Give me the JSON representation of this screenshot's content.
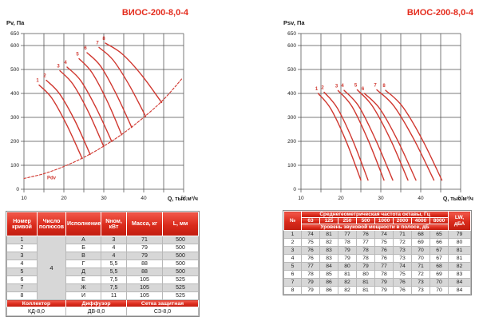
{
  "colors": {
    "accent_red": "#e42b1c",
    "curve_red": "#d03830",
    "grid_gray": "#4f4f4f",
    "row_gray": "#d7d7d7",
    "tick_text": "#1a1a1a"
  },
  "chart_data": [
    {
      "type": "line",
      "title": "ВИОС-200-8,0-4",
      "ylabel": "Pv, Па",
      "xlabel": "Q, тыс.м³/ч",
      "xlim": [
        10,
        50
      ],
      "ylim": [
        0,
        650
      ],
      "xticks": [
        10,
        20,
        30,
        40,
        50
      ],
      "yticks": [
        0,
        100,
        200,
        300,
        400,
        500,
        600,
        650
      ],
      "xgrid": [
        10,
        15,
        20,
        25,
        30,
        35,
        40,
        45,
        50
      ],
      "ygrid": [
        0,
        100,
        200,
        300,
        400,
        500,
        600,
        650
      ],
      "grid": "on",
      "legend": "none",
      "series": [
        {
          "name": "1",
          "points": [
            [
              13.8,
              435
            ],
            [
              17.0,
              380
            ],
            [
              20.8,
              266
            ],
            [
              24.6,
              128
            ]
          ]
        },
        {
          "name": "2",
          "points": [
            [
              15.6,
              455
            ],
            [
              18.9,
              399
            ],
            [
              22.8,
              285
            ],
            [
              26.6,
              145
            ]
          ]
        },
        {
          "name": "3",
          "points": [
            [
              19.0,
              495
            ],
            [
              22.3,
              438
            ],
            [
              26.2,
              321
            ],
            [
              30.0,
              178
            ]
          ]
        },
        {
          "name": "4",
          "points": [
            [
              20.8,
              510
            ],
            [
              24.2,
              454
            ],
            [
              28.1,
              339
            ],
            [
              32.0,
              199
            ]
          ]
        },
        {
          "name": "5",
          "points": [
            [
              23.8,
              545
            ],
            [
              27.0,
              488
            ],
            [
              30.8,
              370
            ],
            [
              34.5,
              227
            ]
          ]
        },
        {
          "name": "6",
          "points": [
            [
              25.8,
              570
            ],
            [
              29.2,
              514
            ],
            [
              33.1,
              398
            ],
            [
              37.0,
              258
            ]
          ]
        },
        {
          "name": "7",
          "points": [
            [
              28.8,
              592
            ],
            [
              32.3,
              540
            ],
            [
              36.4,
              434
            ],
            [
              40.5,
              304
            ]
          ]
        },
        {
          "name": "8",
          "points": [
            [
              30.4,
              610
            ],
            [
              34.6,
              565
            ],
            [
              39.6,
              474
            ],
            [
              44.5,
              362
            ]
          ]
        },
        {
          "name": "Pdv",
          "dashed": true,
          "label_at": [
            15.8,
            42
          ],
          "points": [
            [
              10,
              45
            ],
            [
              15,
              65
            ],
            [
              20,
              95
            ],
            [
              25,
              133
            ],
            [
              30,
              180
            ],
            [
              35,
              235
            ],
            [
              40,
              300
            ],
            [
              45,
              375
            ],
            [
              49.5,
              460
            ]
          ]
        }
      ]
    },
    {
      "type": "line",
      "title": "ВИОС-200-8,0-4",
      "ylabel": "Psv, Па",
      "xlabel": "Q, тыс.м³/ч",
      "xlim": [
        10,
        50
      ],
      "ylim": [
        0,
        650
      ],
      "xticks": [
        10,
        20,
        30,
        40,
        50
      ],
      "yticks": [
        0,
        100,
        200,
        300,
        400,
        500,
        600,
        650
      ],
      "xgrid": [
        10,
        15,
        20,
        25,
        30,
        35,
        40,
        45,
        50
      ],
      "ygrid": [
        0,
        100,
        200,
        300,
        400,
        500,
        600,
        650
      ],
      "grid": "on",
      "legend": "none",
      "series": [
        {
          "name": "1",
          "points": [
            [
              14.3,
              400
            ],
            [
              17.5,
              335
            ],
            [
              21.3,
              201
            ],
            [
              25.0,
              38
            ]
          ]
        },
        {
          "name": "2",
          "points": [
            [
              15.8,
              405
            ],
            [
              19.1,
              339
            ],
            [
              23.0,
              203
            ],
            [
              26.8,
              38
            ]
          ]
        },
        {
          "name": "3",
          "points": [
            [
              19.3,
              412
            ],
            [
              22.8,
              345
            ],
            [
              26.8,
              206
            ],
            [
              30.8,
              38
            ]
          ]
        },
        {
          "name": "4",
          "points": [
            [
              20.8,
              413
            ],
            [
              24.5,
              346
            ],
            [
              28.7,
              207
            ],
            [
              33.0,
              38
            ]
          ]
        },
        {
          "name": "5",
          "points": [
            [
              24.1,
              415
            ],
            [
              27.9,
              347
            ],
            [
              32.4,
              208
            ],
            [
              36.8,
              38
            ]
          ]
        },
        {
          "name": "6",
          "points": [
            [
              25.9,
              400
            ],
            [
              29.8,
              335
            ],
            [
              34.3,
              201
            ],
            [
              38.8,
              38
            ]
          ]
        },
        {
          "name": "7",
          "points": [
            [
              29.0,
              415
            ],
            [
              33.3,
              347
            ],
            [
              38.3,
              208
            ],
            [
              43.3,
              38
            ]
          ]
        },
        {
          "name": "8",
          "points": [
            [
              31.2,
              413
            ],
            [
              35.4,
              346
            ],
            [
              40.4,
              207
            ],
            [
              45.3,
              38
            ]
          ]
        }
      ]
    }
  ],
  "spec_table": {
    "headers": [
      "Номер кривой",
      "Число полюсов",
      "Исполнение",
      "Nном, кВт",
      "Масса, кг",
      "L, мм"
    ],
    "poles_value": "4",
    "rows": [
      [
        "1",
        "А",
        "3",
        "71",
        "500"
      ],
      [
        "2",
        "Б",
        "4",
        "79",
        "500"
      ],
      [
        "3",
        "В",
        "4",
        "79",
        "500"
      ],
      [
        "4",
        "Г",
        "5,5",
        "88",
        "500"
      ],
      [
        "5",
        "Д",
        "5,5",
        "88",
        "500"
      ],
      [
        "6",
        "Е",
        "7,5",
        "105",
        "525"
      ],
      [
        "7",
        "Ж",
        "7,5",
        "105",
        "525"
      ],
      [
        "8",
        "И",
        "11",
        "105",
        "525"
      ]
    ],
    "accessories": {
      "headers": [
        "Коллектор",
        "Диффузор",
        "Сетка защитная"
      ],
      "values": [
        "КД-8,0",
        "ДВ-8,0",
        "СЗ-8,0"
      ]
    }
  },
  "noise_table": {
    "number_label": "№",
    "freq_title": "Среднегеометрическая частота октавы, Гц",
    "freqs": [
      "63",
      "125",
      "250",
      "500",
      "1000",
      "2000",
      "4000",
      "8000"
    ],
    "level_title": "Уровень звуковой мощности в полосе, дБ",
    "lw_line1": "LW,",
    "lw_line2": "дБА",
    "rows": [
      {
        "n": "1",
        "values": [
          "74",
          "81",
          "77",
          "76",
          "74",
          "71",
          "68",
          "65"
        ],
        "lw": "79"
      },
      {
        "n": "2",
        "values": [
          "75",
          "82",
          "78",
          "77",
          "75",
          "72",
          "69",
          "66"
        ],
        "lw": "80"
      },
      {
        "n": "3",
        "values": [
          "76",
          "83",
          "79",
          "78",
          "76",
          "73",
          "70",
          "67"
        ],
        "lw": "81"
      },
      {
        "n": "4",
        "values": [
          "76",
          "83",
          "79",
          "78",
          "76",
          "73",
          "70",
          "67"
        ],
        "lw": "81"
      },
      {
        "n": "5",
        "values": [
          "77",
          "84",
          "80",
          "79",
          "77",
          "74",
          "71",
          "68"
        ],
        "lw": "82"
      },
      {
        "n": "6",
        "values": [
          "78",
          "85",
          "81",
          "80",
          "78",
          "75",
          "72",
          "69"
        ],
        "lw": "83"
      },
      {
        "n": "7",
        "values": [
          "79",
          "86",
          "82",
          "81",
          "79",
          "76",
          "73",
          "70"
        ],
        "lw": "84"
      },
      {
        "n": "8",
        "values": [
          "79",
          "86",
          "82",
          "81",
          "79",
          "76",
          "73",
          "70"
        ],
        "lw": "84"
      }
    ]
  }
}
